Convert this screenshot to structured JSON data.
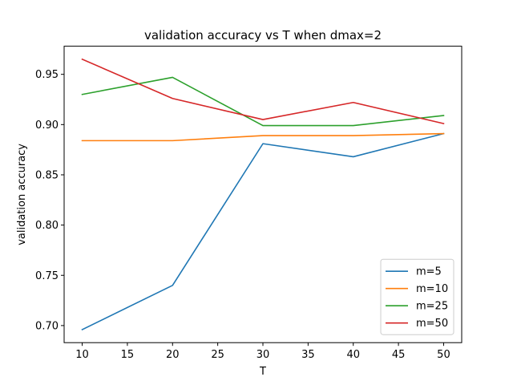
{
  "chart_data": {
    "type": "line",
    "title": "validation accuracy vs T when dmax=2",
    "xlabel": "T",
    "ylabel": "validation accuracy",
    "x": [
      10,
      20,
      30,
      40,
      50
    ],
    "xlim": [
      8,
      52
    ],
    "ylim": [
      0.683,
      0.978
    ],
    "xticks": [
      10,
      15,
      20,
      25,
      30,
      35,
      40,
      45,
      50
    ],
    "yticks": [
      0.7,
      0.75,
      0.8,
      0.85,
      0.9,
      0.95
    ],
    "grid": false,
    "legend_position": "lower-right",
    "series": [
      {
        "name": "m=5",
        "color": "#1f77b4",
        "values": [
          0.696,
          0.74,
          0.881,
          0.868,
          0.891
        ]
      },
      {
        "name": "m=10",
        "color": "#ff7f0e",
        "values": [
          0.884,
          0.884,
          0.889,
          0.889,
          0.891
        ]
      },
      {
        "name": "m=25",
        "color": "#2ca02c",
        "values": [
          0.93,
          0.947,
          0.899,
          0.899,
          0.909
        ]
      },
      {
        "name": "m=50",
        "color": "#d62728",
        "values": [
          0.965,
          0.926,
          0.905,
          0.922,
          0.901
        ]
      }
    ]
  }
}
